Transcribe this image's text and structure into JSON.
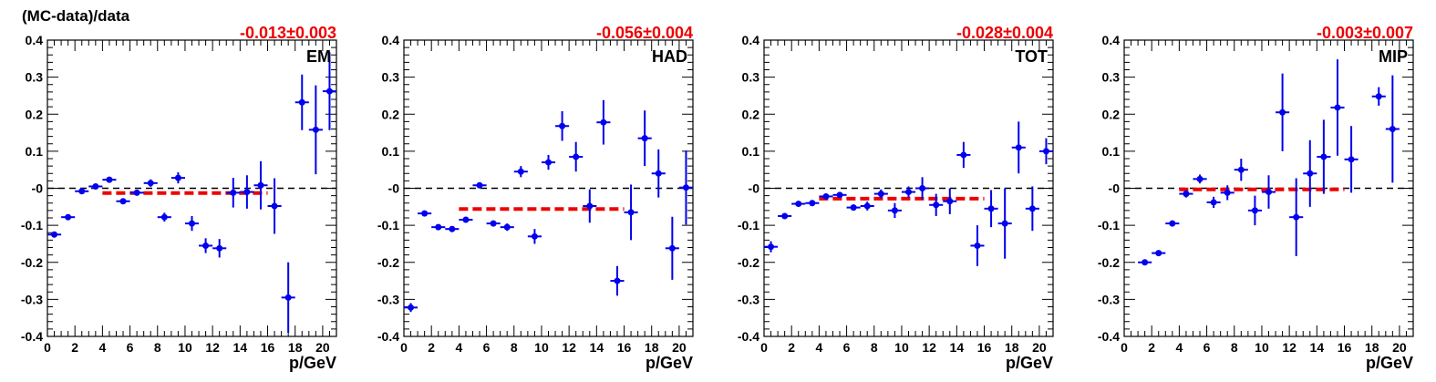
{
  "figure": {
    "ylabel": "(MC-data)/data",
    "xlabel": "p/GeV"
  },
  "colors": {
    "points": "#0000ee",
    "fit": "#ee0000",
    "ref": "#000000",
    "fit_text": "#ee0000"
  },
  "chart_data": [
    {
      "type": "scatter",
      "panel_label": "EM",
      "fit_label": "-0.013±0.003",
      "fit": {
        "value": -0.013,
        "x_range": [
          4,
          16
        ]
      },
      "xlim": [
        0,
        21
      ],
      "ylim": [
        -0.4,
        0.4
      ],
      "xticks": [
        0,
        2,
        4,
        6,
        8,
        10,
        12,
        14,
        16,
        18,
        20
      ],
      "yticks": [
        0.4,
        0.3,
        0.2,
        0.1,
        0,
        -0.1,
        -0.2,
        -0.3,
        -0.4
      ],
      "ytick_labels": [
        "0.4",
        "0.3",
        "0.2",
        "0.1",
        "-0",
        "-0.1",
        "-0.2",
        "-0.3",
        "-0.4"
      ],
      "points": [
        {
          "x": 0.5,
          "y": -0.125,
          "err": 0.008
        },
        {
          "x": 1.5,
          "y": -0.078,
          "err": 0.005
        },
        {
          "x": 2.5,
          "y": -0.008,
          "err": 0.006
        },
        {
          "x": 3.5,
          "y": 0.005,
          "err": 0.004
        },
        {
          "x": 4.5,
          "y": 0.023,
          "err": 0.005
        },
        {
          "x": 5.5,
          "y": -0.035,
          "err": 0.006
        },
        {
          "x": 6.5,
          "y": -0.012,
          "err": 0.006
        },
        {
          "x": 7.5,
          "y": 0.014,
          "err": 0.01
        },
        {
          "x": 8.5,
          "y": -0.078,
          "err": 0.012
        },
        {
          "x": 9.5,
          "y": 0.028,
          "err": 0.015
        },
        {
          "x": 10.5,
          "y": -0.095,
          "err": 0.02
        },
        {
          "x": 11.5,
          "y": -0.155,
          "err": 0.02
        },
        {
          "x": 12.5,
          "y": -0.162,
          "err": 0.025
        },
        {
          "x": 13.5,
          "y": -0.012,
          "err": 0.04
        },
        {
          "x": 14.5,
          "y": -0.01,
          "err": 0.045
        },
        {
          "x": 15.5,
          "y": 0.008,
          "err": 0.065
        },
        {
          "x": 16.5,
          "y": -0.048,
          "err": 0.075
        },
        {
          "x": 17.5,
          "y": -0.295,
          "err": 0.095
        },
        {
          "x": 18.5,
          "y": 0.232,
          "err": 0.075
        },
        {
          "x": 19.5,
          "y": 0.158,
          "err": 0.12
        },
        {
          "x": 20.5,
          "y": 0.262,
          "err": 0.105
        }
      ]
    },
    {
      "type": "scatter",
      "panel_label": "HAD",
      "fit_label": "-0.056±0.004",
      "fit": {
        "value": -0.056,
        "x_range": [
          4,
          16
        ]
      },
      "xlim": [
        0,
        21
      ],
      "ylim": [
        -0.4,
        0.4
      ],
      "xticks": [
        0,
        2,
        4,
        6,
        8,
        10,
        12,
        14,
        16,
        18,
        20
      ],
      "yticks": [
        0.4,
        0.3,
        0.2,
        0.1,
        0,
        -0.1,
        -0.2,
        -0.3,
        -0.4
      ],
      "ytick_labels": [
        "0.4",
        "0.3",
        "0.2",
        "0.1",
        "-0",
        "-0.1",
        "-0.2",
        "-0.3",
        "-0.4"
      ],
      "points": [
        {
          "x": 0.5,
          "y": -0.322,
          "err": 0.012
        },
        {
          "x": 1.5,
          "y": -0.068,
          "err": 0.004
        },
        {
          "x": 2.5,
          "y": -0.105,
          "err": 0.005
        },
        {
          "x": 3.5,
          "y": -0.11,
          "err": 0.006
        },
        {
          "x": 4.5,
          "y": -0.085,
          "err": 0.006
        },
        {
          "x": 5.5,
          "y": 0.008,
          "err": 0.006
        },
        {
          "x": 6.5,
          "y": -0.095,
          "err": 0.008
        },
        {
          "x": 7.5,
          "y": -0.105,
          "err": 0.01
        },
        {
          "x": 8.5,
          "y": 0.045,
          "err": 0.015
        },
        {
          "x": 9.5,
          "y": -0.13,
          "err": 0.02
        },
        {
          "x": 10.5,
          "y": 0.07,
          "err": 0.02
        },
        {
          "x": 11.5,
          "y": 0.168,
          "err": 0.04
        },
        {
          "x": 12.5,
          "y": 0.085,
          "err": 0.04
        },
        {
          "x": 13.5,
          "y": -0.048,
          "err": 0.045
        },
        {
          "x": 14.5,
          "y": 0.178,
          "err": 0.06
        },
        {
          "x": 15.5,
          "y": -0.25,
          "err": 0.04
        },
        {
          "x": 16.5,
          "y": -0.065,
          "err": 0.075
        },
        {
          "x": 17.5,
          "y": 0.135,
          "err": 0.075
        },
        {
          "x": 18.5,
          "y": 0.04,
          "err": 0.065
        },
        {
          "x": 19.5,
          "y": -0.162,
          "err": 0.085
        },
        {
          "x": 20.5,
          "y": 0.002,
          "err": 0.1
        }
      ]
    },
    {
      "type": "scatter",
      "panel_label": "TOT",
      "fit_label": "-0.028±0.004",
      "fit": {
        "value": -0.028,
        "x_range": [
          4,
          16
        ]
      },
      "xlim": [
        0,
        21
      ],
      "ylim": [
        -0.4,
        0.4
      ],
      "xticks": [
        0,
        2,
        4,
        6,
        8,
        10,
        12,
        14,
        16,
        18,
        20
      ],
      "yticks": [
        0.4,
        0.3,
        0.2,
        0.1,
        0,
        -0.1,
        -0.2,
        -0.3,
        -0.4
      ],
      "ytick_labels": [
        "0.4",
        "0.3",
        "0.2",
        "0.1",
        "-0",
        "-0.1",
        "-0.2",
        "-0.3",
        "-0.4"
      ],
      "points": [
        {
          "x": 0.5,
          "y": -0.158,
          "err": 0.015
        },
        {
          "x": 1.5,
          "y": -0.075,
          "err": 0.006
        },
        {
          "x": 2.5,
          "y": -0.042,
          "err": 0.005
        },
        {
          "x": 3.5,
          "y": -0.04,
          "err": 0.004
        },
        {
          "x": 4.5,
          "y": -0.022,
          "err": 0.005
        },
        {
          "x": 5.5,
          "y": -0.018,
          "err": 0.006
        },
        {
          "x": 6.5,
          "y": -0.052,
          "err": 0.008
        },
        {
          "x": 7.5,
          "y": -0.048,
          "err": 0.012
        },
        {
          "x": 8.5,
          "y": -0.015,
          "err": 0.012
        },
        {
          "x": 9.5,
          "y": -0.06,
          "err": 0.02
        },
        {
          "x": 10.5,
          "y": -0.01,
          "err": 0.015
        },
        {
          "x": 11.5,
          "y": 0.0,
          "err": 0.03
        },
        {
          "x": 12.5,
          "y": -0.045,
          "err": 0.03
        },
        {
          "x": 13.5,
          "y": -0.035,
          "err": 0.035
        },
        {
          "x": 14.5,
          "y": 0.09,
          "err": 0.035
        },
        {
          "x": 15.5,
          "y": -0.155,
          "err": 0.055
        },
        {
          "x": 16.5,
          "y": -0.055,
          "err": 0.05
        },
        {
          "x": 17.5,
          "y": -0.095,
          "err": 0.095
        },
        {
          "x": 18.5,
          "y": 0.11,
          "err": 0.07
        },
        {
          "x": 19.5,
          "y": -0.055,
          "err": 0.06
        },
        {
          "x": 20.5,
          "y": 0.1,
          "err": 0.035
        }
      ]
    },
    {
      "type": "scatter",
      "panel_label": "MIP",
      "fit_label": "-0.003±0.007",
      "fit": {
        "value": -0.003,
        "x_range": [
          4,
          16
        ]
      },
      "xlim": [
        0,
        21
      ],
      "ylim": [
        -0.4,
        0.4
      ],
      "xticks": [
        0,
        2,
        4,
        6,
        8,
        10,
        12,
        14,
        16,
        18,
        20
      ],
      "yticks": [
        0.4,
        0.3,
        0.2,
        0.1,
        0,
        -0.1,
        -0.2,
        -0.3,
        -0.4
      ],
      "ytick_labels": [
        "0.4",
        "0.3",
        "0.2",
        "0.1",
        "-0",
        "-0.1",
        "-0.2",
        "-0.3",
        "-0.4"
      ],
      "points": [
        {
          "x": 1.5,
          "y": -0.2,
          "err": 0.005
        },
        {
          "x": 2.5,
          "y": -0.175,
          "err": 0.006
        },
        {
          "x": 3.5,
          "y": -0.095,
          "err": 0.008
        },
        {
          "x": 4.5,
          "y": -0.015,
          "err": 0.01
        },
        {
          "x": 5.5,
          "y": 0.025,
          "err": 0.012
        },
        {
          "x": 6.5,
          "y": -0.038,
          "err": 0.015
        },
        {
          "x": 7.5,
          "y": -0.012,
          "err": 0.02
        },
        {
          "x": 8.5,
          "y": 0.05,
          "err": 0.03
        },
        {
          "x": 9.5,
          "y": -0.06,
          "err": 0.04
        },
        {
          "x": 10.5,
          "y": -0.01,
          "err": 0.045
        },
        {
          "x": 11.5,
          "y": 0.205,
          "err": 0.105
        },
        {
          "x": 12.5,
          "y": -0.078,
          "err": 0.105
        },
        {
          "x": 13.5,
          "y": 0.04,
          "err": 0.09
        },
        {
          "x": 14.5,
          "y": 0.085,
          "err": 0.1
        },
        {
          "x": 15.5,
          "y": 0.218,
          "err": 0.13
        },
        {
          "x": 16.5,
          "y": 0.078,
          "err": 0.09
        },
        {
          "x": 18.5,
          "y": 0.248,
          "err": 0.025
        },
        {
          "x": 19.5,
          "y": 0.16,
          "err": 0.145
        }
      ]
    }
  ]
}
